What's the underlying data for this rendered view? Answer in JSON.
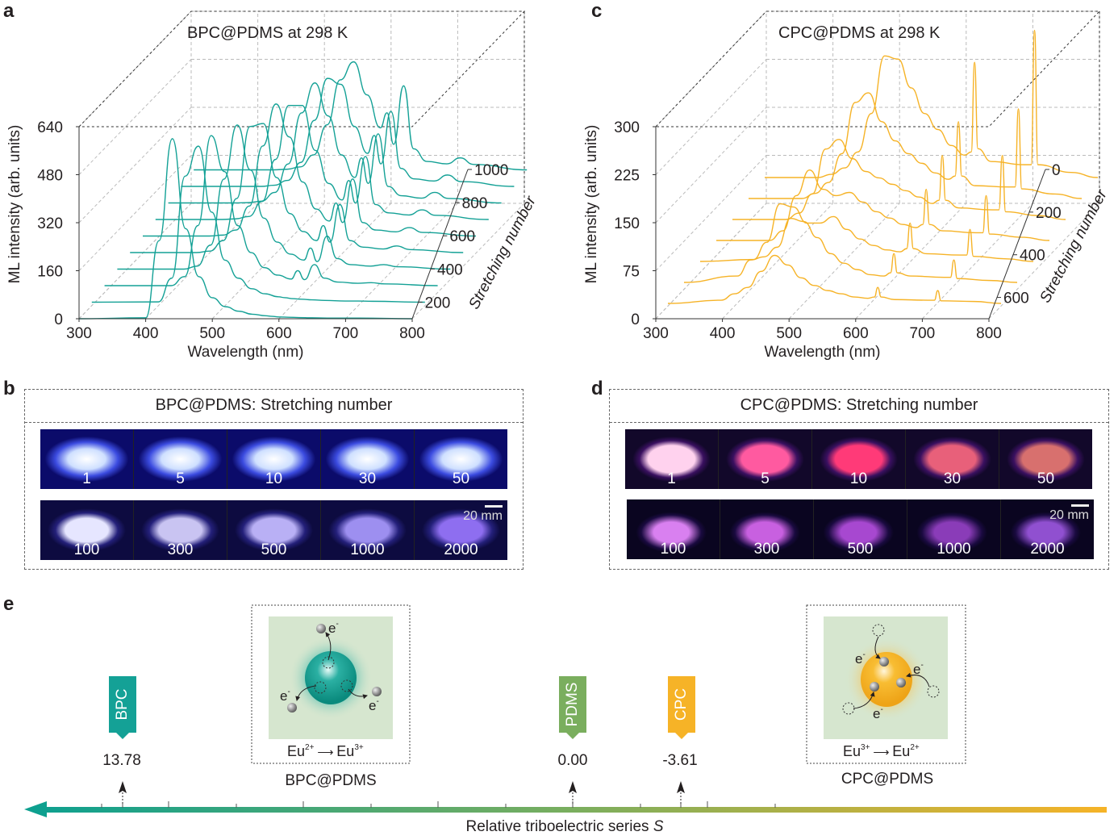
{
  "panels": {
    "a": "a",
    "b": "b",
    "c": "c",
    "d": "d",
    "e": "e"
  },
  "colors": {
    "bpc": "#14a196",
    "cpc": "#f6b327",
    "pdms": "#7aae5e",
    "mech_bg": "#d6e6cf"
  },
  "chart_data": [
    {
      "panel": "a",
      "type": "line",
      "title": "BPC@PDMS at 298 K",
      "xlabel": "Wavelength (nm)",
      "ylabel": "ML intensity (arb. units)",
      "zlabel": "Stretching number",
      "xlim": [
        300,
        800
      ],
      "ylim": [
        0,
        640
      ],
      "xticks": [
        "300",
        "400",
        "500",
        "600",
        "700",
        "800"
      ],
      "yticks": [
        "0",
        "160",
        "320",
        "480",
        "640"
      ],
      "zticks": [
        "200",
        "400",
        "600",
        "800",
        "1000"
      ],
      "grid": true,
      "color": "#14a196",
      "x": [
        300,
        400,
        420,
        440,
        460,
        480,
        500,
        520,
        540,
        560,
        580,
        590,
        600,
        615,
        630,
        650,
        680,
        700,
        720,
        800
      ],
      "series": [
        {
          "stretch": 100,
          "values": [
            0,
            3,
            260,
            600,
            300,
            140,
            70,
            40,
            25,
            15,
            10,
            8,
            6,
            5,
            4,
            3,
            2,
            2,
            2,
            0
          ]
        },
        {
          "stretch": 200,
          "values": [
            0,
            1,
            80,
            420,
            520,
            300,
            140,
            80,
            45,
            28,
            18,
            15,
            12,
            10,
            8,
            6,
            4,
            4,
            3,
            0
          ]
        },
        {
          "stretch": 300,
          "values": [
            0,
            0,
            30,
            200,
            500,
            380,
            200,
            110,
            60,
            35,
            22,
            50,
            20,
            70,
            25,
            12,
            8,
            10,
            6,
            0
          ]
        },
        {
          "stretch": 400,
          "values": [
            0,
            0,
            10,
            80,
            300,
            480,
            330,
            170,
            90,
            50,
            30,
            70,
            25,
            110,
            35,
            15,
            10,
            15,
            8,
            0
          ]
        },
        {
          "stretch": 500,
          "values": [
            0,
            0,
            5,
            40,
            180,
            420,
            430,
            250,
            130,
            70,
            40,
            90,
            35,
            160,
            40,
            18,
            12,
            22,
            10,
            0
          ]
        },
        {
          "stretch": 600,
          "values": [
            0,
            0,
            3,
            20,
            100,
            300,
            440,
            330,
            180,
            90,
            50,
            110,
            45,
            190,
            45,
            20,
            14,
            28,
            12,
            0
          ]
        },
        {
          "stretch": 700,
          "values": [
            0,
            0,
            2,
            10,
            60,
            200,
            380,
            380,
            230,
            120,
            65,
            130,
            55,
            210,
            50,
            22,
            15,
            32,
            14,
            0
          ]
        },
        {
          "stretch": 800,
          "values": [
            0,
            0,
            1,
            6,
            35,
            130,
            300,
            400,
            290,
            160,
            85,
            150,
            65,
            230,
            55,
            24,
            16,
            35,
            15,
            0
          ]
        },
        {
          "stretch": 900,
          "values": [
            0,
            0,
            0,
            4,
            20,
            80,
            220,
            360,
            340,
            200,
            110,
            170,
            75,
            250,
            60,
            25,
            18,
            38,
            16,
            0
          ]
        },
        {
          "stretch": 1000,
          "values": [
            0,
            0,
            0,
            2,
            10,
            50,
            150,
            300,
            360,
            250,
            140,
            190,
            85,
            280,
            70,
            28,
            20,
            40,
            18,
            0
          ]
        }
      ]
    },
    {
      "panel": "c",
      "type": "line",
      "title": "CPC@PDMS at 298 K",
      "xlabel": "Wavelength (nm)",
      "ylabel": "ML intensity (arb. units)",
      "zlabel": "Stretching number",
      "xlim": [
        300,
        800
      ],
      "ylim": [
        0,
        300
      ],
      "xticks": [
        "300",
        "400",
        "500",
        "600",
        "700",
        "800"
      ],
      "yticks": [
        "0",
        "75",
        "150",
        "225",
        "300"
      ],
      "zticks": [
        "0",
        "200",
        "400",
        "600"
      ],
      "grid": true,
      "color": "#f6b327",
      "x": [
        300,
        380,
        400,
        420,
        440,
        460,
        480,
        500,
        520,
        540,
        560,
        580,
        600,
        610,
        615,
        620,
        640,
        690,
        700,
        705,
        710,
        760,
        800
      ],
      "series": [
        {
          "stretch": 0,
          "values": [
            0,
            0,
            5,
            15,
            40,
            100,
            190,
            185,
            140,
            100,
            75,
            50,
            35,
            40,
            180,
            45,
            25,
            20,
            20,
            230,
            20,
            8,
            0
          ]
        },
        {
          "stretch": 100,
          "values": [
            0,
            0,
            8,
            25,
            70,
            150,
            165,
            120,
            90,
            70,
            55,
            40,
            30,
            35,
            120,
            35,
            20,
            18,
            18,
            140,
            15,
            7,
            0
          ]
        },
        {
          "stretch": 200,
          "values": [
            0,
            0,
            10,
            40,
            110,
            125,
            95,
            75,
            65,
            55,
            45,
            35,
            25,
            30,
            100,
            30,
            18,
            15,
            15,
            100,
            12,
            6,
            0
          ]
        },
        {
          "stretch": 300,
          "values": [
            0,
            0,
            15,
            70,
            110,
            80,
            70,
            75,
            60,
            45,
            35,
            25,
            20,
            25,
            80,
            25,
            15,
            12,
            12,
            70,
            10,
            5,
            0
          ]
        },
        {
          "stretch": 400,
          "values": [
            0,
            3,
            30,
            90,
            85,
            60,
            60,
            70,
            50,
            35,
            25,
            18,
            15,
            20,
            60,
            20,
            12,
            10,
            10,
            50,
            8,
            4,
            0
          ]
        },
        {
          "stretch": 500,
          "values": [
            0,
            10,
            35,
            40,
            55,
            100,
            95,
            70,
            45,
            30,
            20,
            12,
            10,
            15,
            45,
            15,
            10,
            8,
            8,
            35,
            6,
            3,
            0
          ]
        },
        {
          "stretch": 600,
          "values": [
            0,
            5,
            15,
            25,
            50,
            75,
            60,
            40,
            28,
            20,
            15,
            10,
            8,
            10,
            25,
            10,
            6,
            5,
            5,
            20,
            4,
            3,
            0
          ]
        }
      ]
    }
  ],
  "photos_b": {
    "title": "BPC@PDMS: Stretching number",
    "row1": [
      "1",
      "5",
      "10",
      "30",
      "50"
    ],
    "row2": [
      "100",
      "300",
      "500",
      "1000",
      "2000"
    ],
    "scale": "20 mm"
  },
  "photos_d": {
    "title": "CPC@PDMS: Stretching number",
    "row1": [
      "1",
      "5",
      "10",
      "30",
      "50"
    ],
    "row2": [
      "100",
      "300",
      "500",
      "1000",
      "2000"
    ],
    "scale": "20 mm"
  },
  "series_e": {
    "axis_label": "Relative triboelectric series S",
    "materials": [
      {
        "name": "BPC",
        "value": "13.78",
        "color": "#14a196"
      },
      {
        "name": "PDMS",
        "value": "0.00",
        "color": "#7aae5e"
      },
      {
        "name": "CPC",
        "value": "-3.61",
        "color": "#f6b327"
      }
    ],
    "bpc_mech": {
      "label": "BPC@PDMS",
      "electron": "e",
      "electron_sup": "-",
      "from": "Eu",
      "from_sup": "2+",
      "to": "Eu",
      "to_sup": "3+"
    },
    "cpc_mech": {
      "label": "CPC@PDMS",
      "electron": "e",
      "electron_sup": "-",
      "from": "Eu",
      "from_sup": "3+",
      "to": "Eu",
      "to_sup": "2+"
    }
  }
}
